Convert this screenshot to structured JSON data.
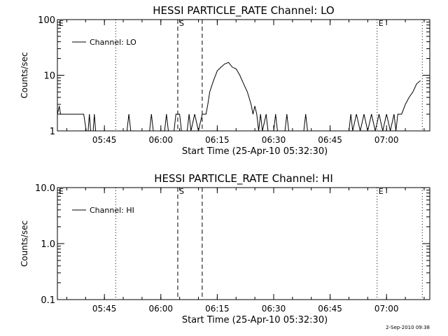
{
  "footer": "2-Sep-2010 09:38",
  "chart_data": [
    {
      "type": "line",
      "title": "HESSI PARTICLE_RATE Channel: LO",
      "xlabel": "Start Time (25-Apr-10 05:32:30)",
      "ylabel": "Counts/sec",
      "y_scale": "log",
      "xlim": [
        "05:32:30",
        "07:11:30"
      ],
      "ylim": [
        1,
        100
      ],
      "x_ticks": [
        "05:45",
        "06:00",
        "06:15",
        "06:30",
        "06:45",
        "07:00"
      ],
      "y_ticks": [
        "1",
        "10",
        "100"
      ],
      "legend": {
        "entries": [
          "Channel: LO"
        ],
        "position": "top-left"
      },
      "markers": [
        {
          "time": "05:32:30",
          "style": "dotted",
          "label": "E"
        },
        {
          "time": "05:48:00",
          "style": "dotted",
          "label": ""
        },
        {
          "time": "06:04:30",
          "style": "dashed",
          "label": "S"
        },
        {
          "time": "06:11:00",
          "style": "dashed",
          "label": ""
        },
        {
          "time": "06:57:30",
          "style": "dotted",
          "label": "E"
        },
        {
          "time": "07:09:30",
          "style": "dotted",
          "label": ""
        }
      ],
      "series": [
        {
          "name": "Channel: LO",
          "points": [
            [
              "05:32:30",
              2
            ],
            [
              "05:33:00",
              2.8
            ],
            [
              "05:33:20",
              2
            ],
            [
              "05:39:30",
              2
            ],
            [
              "05:40:10",
              1
            ],
            [
              "05:40:40",
              1
            ],
            [
              "05:41:00",
              2
            ],
            [
              "05:41:20",
              1
            ],
            [
              "05:42:00",
              1
            ],
            [
              "05:42:20",
              2
            ],
            [
              "05:42:40",
              1
            ],
            [
              "05:51:00",
              1
            ],
            [
              "05:51:30",
              2
            ],
            [
              "05:52:00",
              1
            ],
            [
              "05:57:00",
              1
            ],
            [
              "05:57:30",
              2
            ],
            [
              "05:58:00",
              1
            ],
            [
              "06:01:00",
              1
            ],
            [
              "06:01:30",
              2
            ],
            [
              "06:02:00",
              1
            ],
            [
              "06:03:30",
              1
            ],
            [
              "06:04:00",
              2
            ],
            [
              "06:05:00",
              2
            ],
            [
              "06:05:30",
              1
            ],
            [
              "06:07:00",
              1
            ],
            [
              "06:07:30",
              2
            ],
            [
              "06:08:00",
              1
            ],
            [
              "06:09:00",
              2
            ],
            [
              "06:10:00",
              1
            ],
            [
              "06:11:00",
              2
            ],
            [
              "06:12:00",
              2
            ],
            [
              "06:12:30",
              3
            ],
            [
              "06:13:00",
              5
            ],
            [
              "06:14:00",
              8
            ],
            [
              "06:15:00",
              12
            ],
            [
              "06:16:00",
              14
            ],
            [
              "06:17:00",
              16
            ],
            [
              "06:18:00",
              17
            ],
            [
              "06:19:00",
              14
            ],
            [
              "06:20:00",
              13
            ],
            [
              "06:21:00",
              10
            ],
            [
              "06:22:00",
              7
            ],
            [
              "06:23:00",
              5
            ],
            [
              "06:24:00",
              3
            ],
            [
              "06:24:30",
              2
            ],
            [
              "06:25:00",
              2.8
            ],
            [
              "06:25:30",
              2
            ],
            [
              "06:26:00",
              1
            ],
            [
              "06:26:30",
              2
            ],
            [
              "06:27:00",
              1
            ],
            [
              "06:28:00",
              2
            ],
            [
              "06:28:30",
              1
            ],
            [
              "06:30:00",
              1
            ],
            [
              "06:30:30",
              2
            ],
            [
              "06:31:00",
              1
            ],
            [
              "06:33:00",
              1
            ],
            [
              "06:33:30",
              2
            ],
            [
              "06:34:00",
              1
            ],
            [
              "06:38:00",
              1
            ],
            [
              "06:38:30",
              2
            ],
            [
              "06:39:00",
              1
            ],
            [
              "06:50:00",
              1
            ],
            [
              "06:50:30",
              2
            ],
            [
              "06:51:00",
              1
            ],
            [
              "06:52:00",
              2
            ],
            [
              "06:53:00",
              1
            ],
            [
              "06:54:00",
              2
            ],
            [
              "06:55:00",
              1
            ],
            [
              "06:56:00",
              2
            ],
            [
              "06:57:00",
              1
            ],
            [
              "06:58:00",
              2
            ],
            [
              "06:59:00",
              1
            ],
            [
              "07:00:00",
              2
            ],
            [
              "07:01:00",
              1
            ],
            [
              "07:02:00",
              2
            ],
            [
              "07:02:30",
              1
            ],
            [
              "07:03:00",
              2
            ],
            [
              "07:04:00",
              2
            ],
            [
              "07:05:00",
              3
            ],
            [
              "07:06:00",
              4
            ],
            [
              "07:07:00",
              5
            ],
            [
              "07:08:00",
              7
            ],
            [
              "07:09:00",
              8
            ]
          ]
        }
      ]
    },
    {
      "type": "line",
      "title": "HESSI PARTICLE_RATE Channel: HI",
      "xlabel": "Start Time (25-Apr-10 05:32:30)",
      "ylabel": "Counts/sec",
      "y_scale": "log",
      "xlim": [
        "05:32:30",
        "07:11:30"
      ],
      "ylim": [
        0.1,
        10
      ],
      "x_ticks": [
        "05:45",
        "06:00",
        "06:15",
        "06:30",
        "06:45",
        "07:00"
      ],
      "y_ticks": [
        "0.1",
        "1.0",
        "10.0"
      ],
      "legend": {
        "entries": [
          "Channel: HI"
        ],
        "position": "top-left"
      },
      "markers": [
        {
          "time": "05:32:30",
          "style": "dotted",
          "label": "E"
        },
        {
          "time": "05:48:00",
          "style": "dotted",
          "label": ""
        },
        {
          "time": "06:04:30",
          "style": "dashed",
          "label": "S"
        },
        {
          "time": "06:11:00",
          "style": "dashed",
          "label": ""
        },
        {
          "time": "06:57:30",
          "style": "dotted",
          "label": "E"
        },
        {
          "time": "07:09:30",
          "style": "dotted",
          "label": ""
        }
      ],
      "series": [
        {
          "name": "Channel: HI",
          "points": []
        }
      ]
    }
  ]
}
